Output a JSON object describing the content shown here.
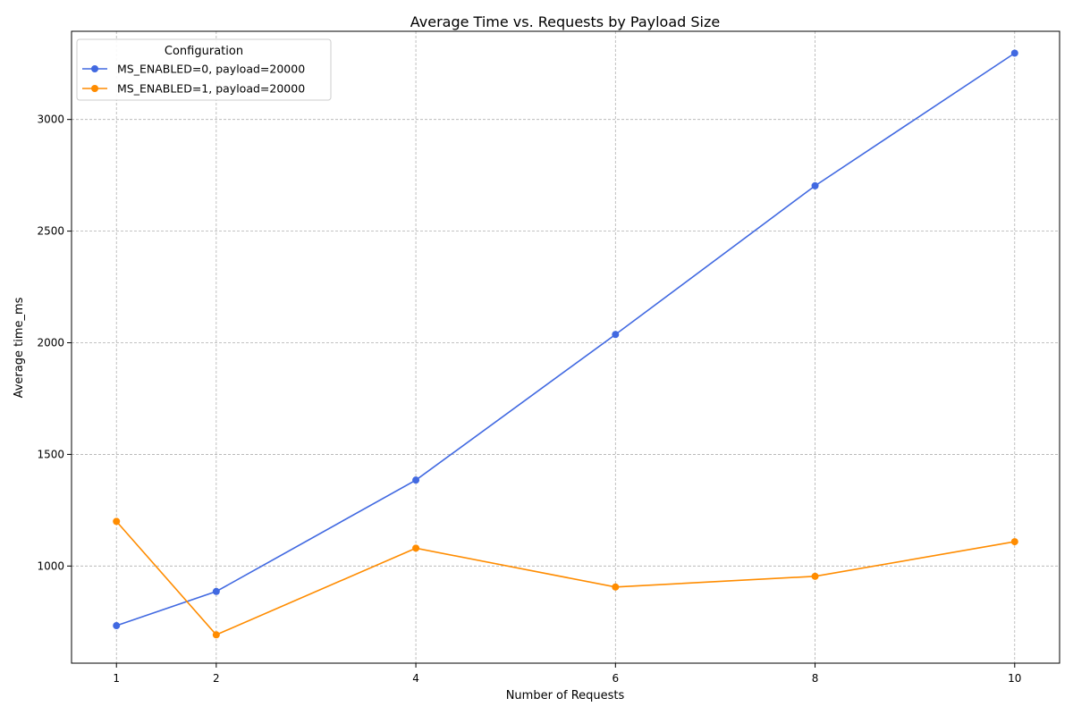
{
  "chart_data": {
    "type": "line",
    "title": "Average Time vs. Requests by Payload Size",
    "xlabel": "Number of Requests",
    "ylabel": "Average time_ms",
    "x": [
      1,
      2,
      4,
      6,
      8,
      10
    ],
    "xticks": [
      1,
      2,
      4,
      6,
      8,
      10
    ],
    "yticks": [
      1000,
      1500,
      2000,
      2500,
      3000
    ],
    "xlim": [
      0.55,
      10.45
    ],
    "ylim": [
      565,
      3395
    ],
    "grid": true,
    "legend": {
      "title": "Configuration",
      "placement": "top-left"
    },
    "series": [
      {
        "name": "MS_ENABLED=0, payload=20000",
        "color": "#4169e1",
        "values": [
          733,
          886,
          1385,
          2037,
          2703,
          3297
        ]
      },
      {
        "name": "MS_ENABLED=1, payload=20000",
        "color": "#ff8c00",
        "values": [
          1200,
          692,
          1080,
          906,
          954,
          1109
        ]
      }
    ]
  }
}
